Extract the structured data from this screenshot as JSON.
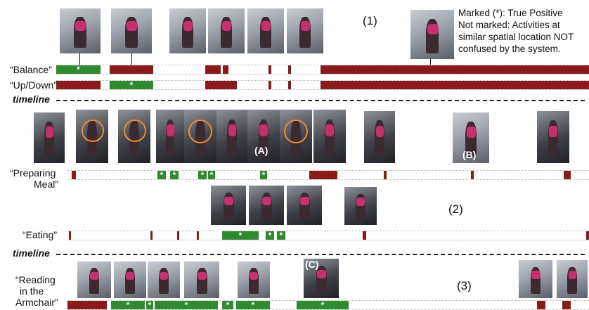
{
  "legend": {
    "line1": "Marked (*): True Positive",
    "line2": "Not marked: Activities at",
    "line3": "similar spatial location NOT",
    "line4": "confused by the system."
  },
  "section_numbers": {
    "s1": "(1)",
    "s2": "(2)",
    "s3": "(3)"
  },
  "rows": {
    "balance": "“Balance”",
    "updown": "“Up/Down”",
    "preparing1": "“Preparing",
    "preparing2": "Meal”",
    "eating": "“Eating”",
    "reading1": "“Reading",
    "reading2": "in the",
    "reading3": "Armchair”"
  },
  "timeline_label": "timeline",
  "star": "*",
  "tags": {
    "a": "(A)",
    "b": "(B)",
    "c": "(C)"
  },
  "colors": {
    "true_positive": "#2e8b2e",
    "detection": "#8b1a1a",
    "highlight": "#e0307a",
    "circle": "#f08a2c"
  }
}
